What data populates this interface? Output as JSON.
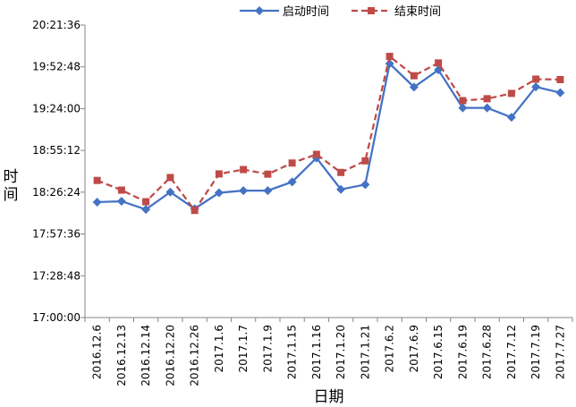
{
  "chart_data": {
    "type": "line",
    "title": "",
    "xlabel": "日期",
    "ylabel": "时间",
    "ylim_seconds": [
      61200,
      73296
    ],
    "y_ticks": [
      "17:00:00",
      "17:28:48",
      "17:57:36",
      "18:26:24",
      "18:55:12",
      "19:24:00",
      "19:52:48",
      "20:21:36"
    ],
    "categories": [
      "2016.12.6",
      "2016.12.13",
      "2016.12.14",
      "2016.12.20",
      "2016.12.26",
      "2017.1.6",
      "2017.1.7",
      "2017.1.9",
      "2017.1.15",
      "2017.1.16",
      "2017.1.20",
      "2017.1.21",
      "2017.6.2",
      "2017.6.9",
      "2017.6.15",
      "2017.6.19",
      "2017.6.28",
      "2017.7.12",
      "2017.7.19",
      "2017.7.27"
    ],
    "series": [
      {
        "name": "启动时间",
        "color": "#4472C4",
        "style": "solid",
        "marker": "diamond",
        "values": [
          "18:19:30",
          "18:20:10",
          "18:14:30",
          "18:26:30",
          "18:15:00",
          "18:26:00",
          "18:27:30",
          "18:27:30",
          "18:33:30",
          "18:50:00",
          "18:28:20",
          "18:31:40",
          "19:55:00",
          "19:38:50",
          "19:50:40",
          "19:24:30",
          "19:24:30",
          "19:18:00",
          "19:39:00",
          "19:35:00"
        ]
      },
      {
        "name": "结束时间",
        "color": "#BE4B48",
        "style": "dashed",
        "marker": "square",
        "values": [
          "18:34:30",
          "18:27:50",
          "18:19:50",
          "18:36:30",
          "18:13:50",
          "18:39:00",
          "18:42:00",
          "18:38:50",
          "18:46:30",
          "18:52:30",
          "18:40:00",
          "18:48:00",
          "20:00:00",
          "19:46:40",
          "19:55:30",
          "19:29:30",
          "19:30:50",
          "19:34:30",
          "19:44:20",
          "19:44:00"
        ]
      }
    ],
    "legend_position": "top",
    "grid": false
  }
}
